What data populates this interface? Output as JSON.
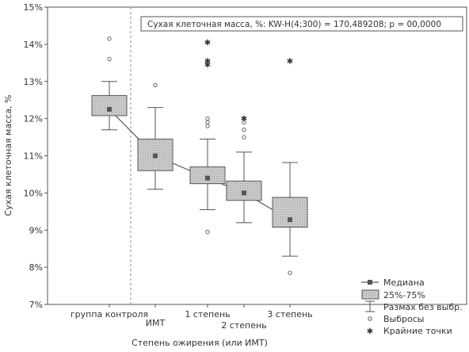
{
  "chart_data": {
    "type": "box",
    "xlabel": "Степень ожирения (или ИМТ)",
    "ylabel": "Сухая клеточная масса, %",
    "ylim": [
      7,
      15
    ],
    "yticks": [
      "7%",
      "8%",
      "9%",
      "10%",
      "11%",
      "12%",
      "13%",
      "14%",
      "15%"
    ],
    "stat_text": "Сухая клеточная масса, %:  KW-H(4;300) = 170,489208; p = 00,0000",
    "categories": [
      "группа контроля",
      "ИМТ",
      "1 степень",
      "2 степень",
      "3 степень"
    ],
    "boxes": [
      {
        "name": "группа контроля",
        "median": 12.25,
        "q1": 12.08,
        "q3": 12.62,
        "whisker_low": 11.7,
        "whisker_high": 13.0,
        "outliers": [
          13.6,
          14.15
        ],
        "extremes": []
      },
      {
        "name": "ИМТ",
        "median": 11.0,
        "q1": 10.6,
        "q3": 11.45,
        "whisker_low": 10.1,
        "whisker_high": 12.3,
        "outliers": [
          12.9
        ],
        "extremes": []
      },
      {
        "name": "1 степень",
        "median": 10.4,
        "q1": 10.25,
        "q3": 10.7,
        "whisker_low": 9.55,
        "whisker_high": 11.45,
        "outliers": [
          8.95,
          11.8,
          11.9,
          12.0
        ],
        "extremes": [
          13.45,
          13.55,
          14.05
        ]
      },
      {
        "name": "2 степень",
        "median": 10.0,
        "q1": 9.8,
        "q3": 10.32,
        "whisker_low": 9.2,
        "whisker_high": 11.1,
        "outliers": [
          11.5,
          11.7,
          11.9
        ],
        "extremes": [
          12.0
        ]
      },
      {
        "name": "3 степень",
        "median": 9.28,
        "q1": 9.08,
        "q3": 9.88,
        "whisker_low": 8.3,
        "whisker_high": 10.82,
        "outliers": [
          7.85
        ],
        "extremes": [
          13.55
        ]
      }
    ],
    "legend": {
      "median": "Медиана",
      "box": "25%-75%",
      "whisker": "Размах без выбр.",
      "outliers": "Выбросы",
      "extremes": "Крайние точки"
    },
    "colors": {
      "box_fill": "#c8c8c8",
      "line": "#555555",
      "text": "#333333"
    }
  }
}
